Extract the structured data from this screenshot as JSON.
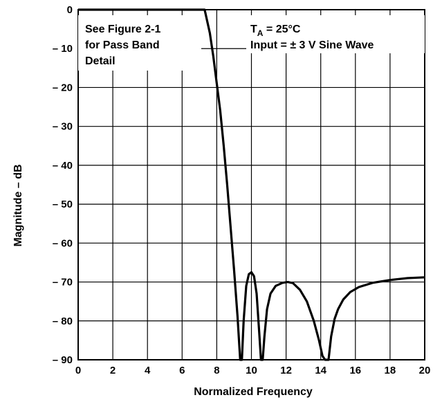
{
  "chart_data": {
    "type": "line",
    "title": "",
    "xlabel": "Normalized Frequency",
    "ylabel": "Magnitude – dB",
    "xlim": [
      0,
      20
    ],
    "ylim": [
      -90,
      0
    ],
    "xticks": [
      0,
      2,
      4,
      6,
      8,
      10,
      12,
      14,
      16,
      18,
      20
    ],
    "yticks": [
      0,
      -10,
      -20,
      -30,
      -40,
      -50,
      -60,
      -70,
      -80,
      -90
    ],
    "xtick_labels": [
      "0",
      "2",
      "4",
      "6",
      "8",
      "10",
      "12",
      "14",
      "16",
      "18",
      "20"
    ],
    "ytick_labels": [
      "0",
      "– 10",
      "– 20",
      "– 30",
      "– 40",
      "– 50",
      "– 60",
      "– 70",
      "– 80",
      "– 90"
    ],
    "grid": true,
    "legend": "none",
    "line_color": "#000000",
    "annotations": {
      "left_box": [
        "See Figure 2-1",
        "for Pass Band",
        "Detail"
      ],
      "right_box_line1_main": "T",
      "right_box_line1_sub": "A",
      "right_box_line1_rest": " = 25°C",
      "right_box_line2": "Input = ± 3 V Sine Wave"
    },
    "series": [
      {
        "x": [
          0,
          7.3,
          7.6,
          7.8,
          8.0,
          8.2,
          8.4,
          8.6,
          8.8,
          9.0,
          9.2,
          9.35,
          9.45,
          9.55,
          9.7,
          9.85,
          10.0,
          10.15,
          10.3,
          10.45,
          10.55,
          10.65,
          10.75,
          10.9,
          11.1,
          11.4,
          11.8,
          12.1,
          12.4,
          12.8,
          13.2,
          13.6,
          13.9,
          14.1,
          14.25,
          14.35,
          14.45,
          14.6,
          14.8,
          15.0,
          15.3,
          15.7,
          16.2,
          17.0,
          18.0,
          19.0,
          20.0
        ],
        "y": [
          0,
          0,
          -6,
          -12,
          -19,
          -26,
          -35,
          -45,
          -56,
          -67,
          -79,
          -90,
          -90,
          -80,
          -71,
          -68,
          -67.5,
          -68.5,
          -73,
          -83,
          -90,
          -90,
          -84,
          -77,
          -73,
          -71,
          -70.2,
          -70,
          -70.3,
          -72,
          -75,
          -80,
          -85,
          -89,
          -90,
          -90,
          -90,
          -84,
          -79.5,
          -77,
          -74.5,
          -72.6,
          -71.3,
          -70.2,
          -69.5,
          -69,
          -68.8
        ]
      }
    ]
  }
}
